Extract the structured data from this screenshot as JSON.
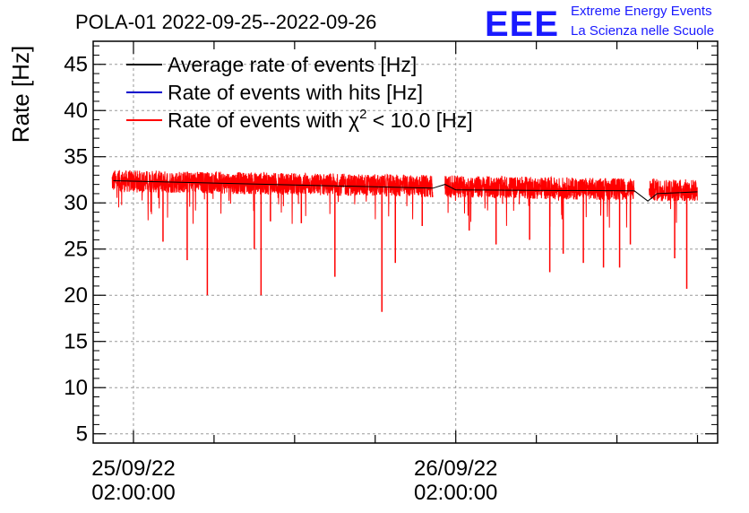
{
  "chart_data": {
    "type": "line",
    "title": "POLA-01 2022-09-25--2022-09-26",
    "ylabel": "Rate [Hz]",
    "xlabel": "",
    "ylim": [
      4,
      47.5
    ],
    "yticks": [
      5,
      10,
      15,
      20,
      25,
      30,
      35,
      40,
      45
    ],
    "xlim_hours": [
      -3.0,
      43.5
    ],
    "xticks": [
      {
        "hour": 0,
        "line1": "25/09/22",
        "line2": "02:00:00"
      },
      {
        "hour": 24,
        "line1": "26/09/22",
        "line2": "02:00:00"
      }
    ],
    "grid": true,
    "legend_position": "top-left",
    "series": [
      {
        "name": "Average rate of events [Hz]",
        "color": "#000000",
        "x_hours": [
          -1.5,
          22.3,
          23.2,
          24.0,
          37.3,
          38.3,
          39.0,
          42.0
        ],
        "values": [
          32.4,
          31.6,
          32.0,
          31.4,
          31.3,
          30.2,
          31.0,
          31.2
        ]
      },
      {
        "name": "Rate of events with hits [Hz]",
        "color": "#0000cc"
      },
      {
        "name": "Rate of events with χ² < 10.0 [Hz]",
        "color": "#ff0000",
        "segments": [
          [
            -1.6,
            22.3
          ],
          [
            23.2,
            37.3
          ],
          [
            38.4,
            42.0
          ]
        ],
        "baseline_start": 32.4,
        "baseline_end": 31.3,
        "spikes": [
          {
            "hour": 5.5,
            "value": 20.0
          },
          {
            "hour": 9.5,
            "value": 20.0
          },
          {
            "hour": 18.5,
            "value": 18.2
          },
          {
            "hour": 15.0,
            "value": 22.0
          },
          {
            "hour": 4.0,
            "value": 23.8
          },
          {
            "hour": 2.2,
            "value": 25.8
          },
          {
            "hour": 9.0,
            "value": 25.0
          },
          {
            "hour": 19.5,
            "value": 23.5
          },
          {
            "hour": 10.2,
            "value": 28.0
          },
          {
            "hour": 27.0,
            "value": 25.5
          },
          {
            "hour": 31.0,
            "value": 22.5
          },
          {
            "hour": 33.5,
            "value": 23.5
          },
          {
            "hour": 35.0,
            "value": 23.0
          },
          {
            "hour": 36.2,
            "value": 23.0
          },
          {
            "hour": 41.2,
            "value": 20.7
          },
          {
            "hour": 40.3,
            "value": 24.0
          },
          {
            "hour": 32.0,
            "value": 24.5
          },
          {
            "hour": 12.5,
            "value": 27.8
          },
          {
            "hour": 21.5,
            "value": 27.5
          },
          {
            "hour": 25.0,
            "value": 27.0
          },
          {
            "hour": 29.5,
            "value": 26.0
          },
          {
            "hour": 37.0,
            "value": 25.5
          }
        ]
      }
    ],
    "legend": [
      {
        "label": "Average rate of events [Hz]",
        "color": "#000000"
      },
      {
        "label": "Rate of events with hits [Hz]",
        "color": "#0000cc"
      },
      {
        "label_pre": "Rate of events with χ",
        "label_sup": "2",
        "label_post": " < 10.0 [Hz]",
        "color": "#ff0000"
      }
    ]
  },
  "logo": {
    "big": "EEE",
    "line1": "Extreme Energy Events",
    "line2": "La Scienza nelle Scuole",
    "color": "#1a1aff"
  }
}
